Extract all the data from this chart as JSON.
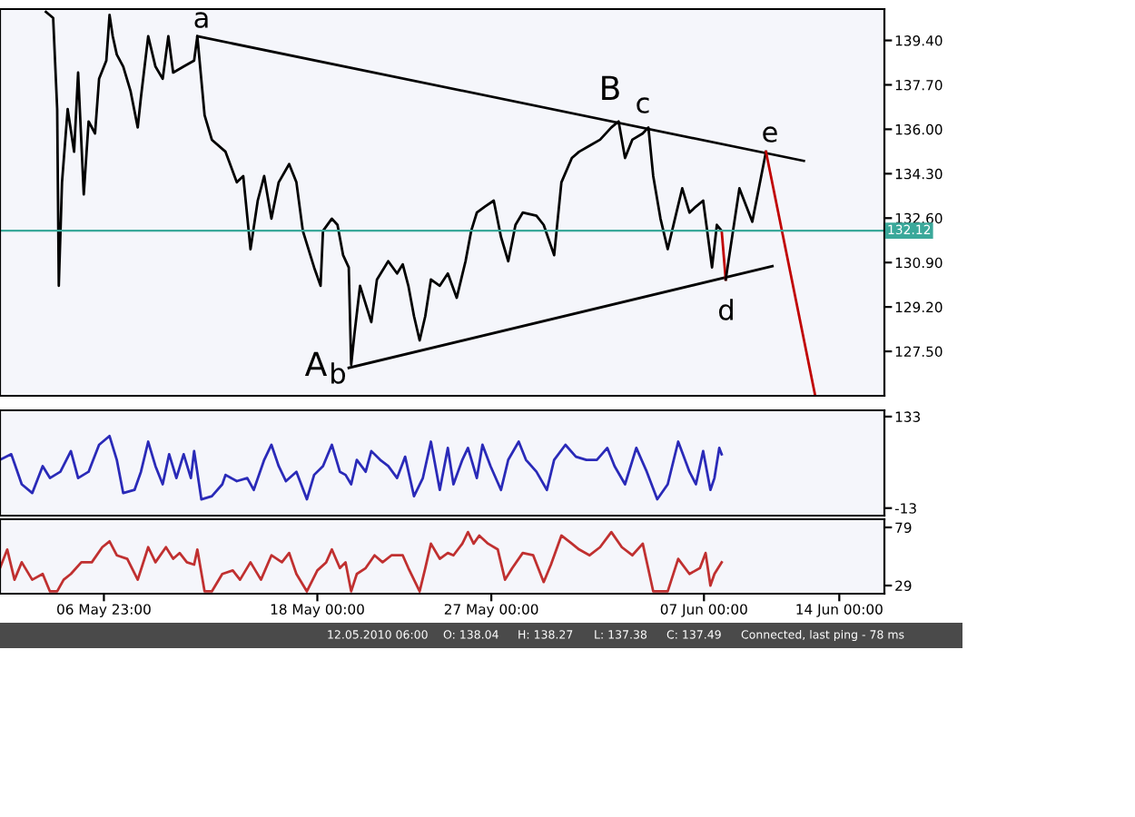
{
  "chart_data": [
    {
      "type": "line",
      "xlim": [
        "2010-05-01T14:00",
        "2010-06-16T08:00"
      ],
      "ylim": [
        125.8,
        140.6
      ],
      "tick_labels": "y",
      "yticks": [
        {
          "value": 127.5,
          "label": "127.50"
        },
        {
          "value": 129.2,
          "label": "129.20"
        },
        {
          "value": 130.9,
          "label": "130.90"
        },
        {
          "value": 132.6,
          "label": "132.60"
        },
        {
          "value": 134.3,
          "label": "134.30"
        },
        {
          "value": 136.0,
          "label": "136.00"
        },
        {
          "value": 137.7,
          "label": "137.70"
        },
        {
          "value": 139.4,
          "label": "139.40"
        }
      ],
      "series": [
        {
          "color": "#000000",
          "x": [
            "2010-05-03T23:00",
            "2010-05-04T08:00",
            "2010-05-04T13:00",
            "2010-05-04T15:00",
            "2010-05-04T19:00",
            "2010-05-05T02:00",
            "2010-05-05T10:00",
            "2010-05-05T15:00",
            "2010-05-05T22:00",
            "2010-05-06T04:00",
            "2010-05-06T12:00",
            "2010-05-06T17:00",
            "2010-05-07T02:00",
            "2010-05-07T06:00",
            "2010-05-07T10:00",
            "2010-05-07T15:00",
            "2010-05-07T23:00",
            "2010-05-08T08:00",
            "2010-05-08T17:00",
            "2010-05-08T21:00",
            "2010-05-09T06:00",
            "2010-05-09T15:00",
            "2010-05-10T00:00",
            "2010-05-10T07:00",
            "2010-05-10T13:00",
            "2010-05-11T02:00",
            "2010-05-11T15:00",
            "2010-05-11T19:00",
            "2010-05-12T04:00",
            "2010-05-12T13:00",
            "2010-05-13T06:00",
            "2010-05-13T20:00",
            "2010-05-14T04:00",
            "2010-05-14T13:00",
            "2010-05-14T22:00",
            "2010-05-15T06:00",
            "2010-05-15T15:00",
            "2010-05-16T00:00",
            "2010-05-16T13:00",
            "2010-05-16T22:00",
            "2010-05-17T06:00",
            "2010-05-17T20:00",
            "2010-05-18T04:00",
            "2010-05-18T07:00",
            "2010-05-18T18:00",
            "2010-05-19T01:00",
            "2010-05-19T08:00",
            "2010-05-19T15:00",
            "2010-05-19T18:00",
            "2010-05-19T22:00",
            "2010-05-20T05:00",
            "2010-05-20T19:00",
            "2010-05-21T02:00",
            "2010-05-21T16:00",
            "2010-05-22T03:00",
            "2010-05-22T10:00",
            "2010-05-22T17:00",
            "2010-05-23T00:00",
            "2010-05-23T07:00",
            "2010-05-23T14:00",
            "2010-05-23T21:00",
            "2010-05-24T08:00",
            "2010-05-24T18:00",
            "2010-05-25T05:00",
            "2010-05-25T16:00",
            "2010-05-25T23:00",
            "2010-05-26T06:00",
            "2010-05-26T16:00",
            "2010-05-27T03:00",
            "2010-05-27T12:00",
            "2010-05-27T21:00",
            "2010-05-28T06:00",
            "2010-05-28T15:00",
            "2010-05-29T08:00",
            "2010-05-29T17:00",
            "2010-05-30T06:00",
            "2010-05-30T15:00",
            "2010-05-31T04:00",
            "2010-05-31T13:00",
            "2010-06-01T02:00",
            "2010-06-01T15:00",
            "2010-06-02T05:00",
            "2010-06-02T14:00",
            "2010-06-02T22:00",
            "2010-06-03T07:00",
            "2010-06-03T20:00",
            "2010-06-04T03:00",
            "2010-06-04T09:00",
            "2010-06-04T18:00",
            "2010-06-05T03:00",
            "2010-06-05T12:00",
            "2010-06-05T21:00",
            "2010-06-06T06:00",
            "2010-06-06T14:00",
            "2010-06-06T23:00",
            "2010-06-07T05:00",
            "2010-06-07T10:00",
            "2010-06-07T16:00",
            "2010-06-07T22:00"
          ],
          "values": [
            140.49,
            140.26,
            136.77,
            130.01,
            133.97,
            136.77,
            135.14,
            138.17,
            133.51,
            136.3,
            135.84,
            137.93,
            138.63,
            140.38,
            139.56,
            138.86,
            138.4,
            137.47,
            136.07,
            137.23,
            139.56,
            138.4,
            137.93,
            139.56,
            138.17,
            138.4,
            138.63,
            139.56,
            136.54,
            135.6,
            135.14,
            133.97,
            134.21,
            131.41,
            133.27,
            134.21,
            132.58,
            133.97,
            134.67,
            133.97,
            132.11,
            130.71,
            130.01,
            132.11,
            132.58,
            132.34,
            131.18,
            130.71,
            126.99,
            128.15,
            130.01,
            128.62,
            130.25,
            130.95,
            130.48,
            130.83,
            130.01,
            128.85,
            127.92,
            128.85,
            130.25,
            130.01,
            130.48,
            129.55,
            130.95,
            132.11,
            132.81,
            133.04,
            133.27,
            131.88,
            130.95,
            132.34,
            132.81,
            132.69,
            132.34,
            131.18,
            133.97,
            134.9,
            135.14,
            135.37,
            135.6,
            136.07,
            136.3,
            134.9,
            135.6,
            135.84,
            136.07,
            134.21,
            132.58,
            131.41,
            132.58,
            133.74,
            132.81,
            133.04,
            133.27,
            131.88,
            130.71,
            132.34,
            132.11
          ]
        },
        {
          "color": "#000000",
          "x": [
            "2010-05-11T19:00",
            "2010-06-12T04:00"
          ],
          "values": [
            139.56,
            134.79
          ]
        },
        {
          "color": "#000000",
          "x": [
            "2010-05-19T15:00",
            "2010-06-10T13:00"
          ],
          "values": [
            126.87,
            130.76
          ]
        },
        {
          "color": "#c00000",
          "x": [
            "2010-06-07T22:00",
            "2010-06-08T03:00"
          ],
          "values": [
            132.11,
            130.25
          ]
        },
        {
          "color": "#000000",
          "x": [
            "2010-06-08T03:00",
            "2010-06-08T20:00",
            "2010-06-09T12:00",
            "2010-06-10T05:00"
          ],
          "values": [
            130.25,
            133.74,
            132.46,
            135.14
          ]
        },
        {
          "color": "#c00000",
          "x": [
            "2010-06-10T05:00",
            "2010-06-12T18:00"
          ],
          "values": [
            135.14,
            125.82
          ]
        }
      ],
      "ref_lines": [
        {
          "axis": "y",
          "value": 132.12,
          "label": "132.12",
          "color": "#3aa89a"
        }
      ],
      "annotations": [
        "a",
        "B",
        "c",
        "e",
        "d",
        "A",
        "b"
      ]
    },
    {
      "type": "line",
      "xlim": [
        "2010-05-01T14:00",
        "2010-06-16T08:00"
      ],
      "ylim": [
        -25,
        143
      ],
      "tick_labels": "y",
      "yticks": [
        {
          "value": -13,
          "label": "-13"
        },
        133
      ],
      "series": [
        {
          "color": "#2a2ab8",
          "x": [
            "2010-05-01T14:00",
            "2010-05-02T04:00",
            "2010-05-02T17:00",
            "2010-05-03T06:00",
            "2010-05-03T19:00",
            "2010-05-04T04:00",
            "2010-05-04T17:00",
            "2010-05-05T06:00",
            "2010-05-05T15:00",
            "2010-05-06T04:00",
            "2010-05-06T17:00",
            "2010-05-07T06:00",
            "2010-05-07T15:00",
            "2010-05-07T23:00",
            "2010-05-08T13:00",
            "2010-05-08T21:00",
            "2010-05-09T06:00",
            "2010-05-09T15:00",
            "2010-05-10T00:00",
            "2010-05-10T08:00",
            "2010-05-10T17:00",
            "2010-05-11T02:00",
            "2010-05-11T11:00",
            "2010-05-11T15:00",
            "2010-05-12T00:00",
            "2010-05-12T13:00",
            "2010-05-13T02:00",
            "2010-05-13T06:00",
            "2010-05-13T20:00",
            "2010-05-14T09:00",
            "2010-05-14T17:00",
            "2010-05-15T06:00",
            "2010-05-15T15:00",
            "2010-05-16T00:00",
            "2010-05-16T09:00",
            "2010-05-16T22:00",
            "2010-05-17T11:00",
            "2010-05-17T20:00",
            "2010-05-18T07:00",
            "2010-05-18T18:00",
            "2010-05-19T04:00",
            "2010-05-19T11:00",
            "2010-05-19T18:00",
            "2010-05-20T01:00",
            "2010-05-20T12:00",
            "2010-05-20T19:00",
            "2010-05-21T06:00",
            "2010-05-21T16:00",
            "2010-05-22T03:00",
            "2010-05-22T13:00",
            "2010-05-23T00:00",
            "2010-05-23T11:00",
            "2010-05-23T21:00",
            "2010-05-24T08:00",
            "2010-05-24T18:00",
            "2010-05-25T01:00",
            "2010-05-25T12:00",
            "2010-05-25T19:00",
            "2010-05-26T06:00",
            "2010-05-26T13:00",
            "2010-05-26T23:00",
            "2010-05-27T12:00",
            "2010-05-27T21:00",
            "2010-05-28T10:00",
            "2010-05-28T19:00",
            "2010-05-29T08:00",
            "2010-05-29T21:00",
            "2010-05-30T06:00",
            "2010-05-30T20:00",
            "2010-05-31T09:00",
            "2010-05-31T22:00",
            "2010-06-01T11:00",
            "2010-06-02T00:00",
            "2010-06-02T09:00",
            "2010-06-02T22:00",
            "2010-06-03T12:00",
            "2010-06-04T01:00",
            "2010-06-04T14:00",
            "2010-06-05T03:00",
            "2010-06-05T16:00",
            "2010-06-06T06:00",
            "2010-06-06T14:00",
            "2010-06-06T23:00",
            "2010-06-07T08:00",
            "2010-06-07T13:00",
            "2010-06-07T19:00",
            "2010-06-07T22:00"
          ],
          "values": [
            64,
            73,
            25,
            11,
            54,
            35,
            45,
            78,
            35,
            45,
            88,
            102,
            64,
            11,
            16,
            45,
            93,
            54,
            25,
            73,
            35,
            73,
            35,
            78,
            1,
            6,
            25,
            40,
            30,
            35,
            16,
            64,
            88,
            54,
            30,
            45,
            1,
            40,
            54,
            88,
            45,
            40,
            25,
            64,
            45,
            78,
            64,
            54,
            35,
            69,
            6,
            35,
            93,
            16,
            83,
            25,
            64,
            83,
            35,
            88,
            54,
            16,
            64,
            93,
            64,
            45,
            16,
            64,
            88,
            69,
            64,
            64,
            83,
            54,
            25,
            83,
            45,
            1,
            25,
            93,
            45,
            25,
            78,
            16,
            35,
            83,
            73
          ]
        }
      ]
    },
    {
      "type": "line",
      "xlim": [
        "2010-05-01T14:00",
        "2010-06-16T08:00"
      ],
      "ylim": [
        22,
        86
      ],
      "xticks": [
        {
          "value": "2010-05-06T23:00",
          "label": "06 May 23:00"
        },
        {
          "value": "2010-05-18T00:00",
          "label": "18 May 00:00"
        },
        {
          "value": "2010-05-27T00:00",
          "label": "27 May 00:00"
        },
        {
          "value": "2010-06-07T00:00",
          "label": "07 Jun 00:00"
        },
        {
          "value": "2010-06-14T00:00",
          "label": "14 Jun 00:00"
        }
      ],
      "yticks": [
        29,
        79
      ],
      "series": [
        {
          "color": "#c03030",
          "x": [
            "2010-05-01T14:00",
            "2010-05-01T23:00",
            "2010-05-02T08:00",
            "2010-05-02T17:00",
            "2010-05-03T06:00",
            "2010-05-03T19:00",
            "2010-05-04T04:00",
            "2010-05-04T13:00",
            "2010-05-04T21:00",
            "2010-05-05T06:00",
            "2010-05-05T19:00",
            "2010-05-06T08:00",
            "2010-05-06T21:00",
            "2010-05-07T06:00",
            "2010-05-07T15:00",
            "2010-05-08T04:00",
            "2010-05-08T17:00",
            "2010-05-09T06:00",
            "2010-05-09T15:00",
            "2010-05-10T04:00",
            "2010-05-10T13:00",
            "2010-05-10T21:00",
            "2010-05-11T06:00",
            "2010-05-11T15:00",
            "2010-05-11T19:00",
            "2010-05-12T04:00",
            "2010-05-12T13:00",
            "2010-05-13T02:00",
            "2010-05-13T15:00",
            "2010-05-14T00:00",
            "2010-05-14T13:00",
            "2010-05-15T02:00",
            "2010-05-15T15:00",
            "2010-05-16T04:00",
            "2010-05-16T13:00",
            "2010-05-16T22:00",
            "2010-05-17T11:00",
            "2010-05-18T00:00",
            "2010-05-18T11:00",
            "2010-05-18T18:00",
            "2010-05-19T04:00",
            "2010-05-19T11:00",
            "2010-05-19T18:00",
            "2010-05-20T01:00",
            "2010-05-20T12:00",
            "2010-05-20T23:00",
            "2010-05-21T09:00",
            "2010-05-21T20:00",
            "2010-05-22T10:00",
            "2010-05-22T17:00",
            "2010-05-23T00:00",
            "2010-05-23T07:00",
            "2010-05-23T14:00",
            "2010-05-23T21:00",
            "2010-05-24T08:00",
            "2010-05-24T18:00",
            "2010-05-25T01:00",
            "2010-05-25T12:00",
            "2010-05-25T19:00",
            "2010-05-26T02:00",
            "2010-05-26T09:00",
            "2010-05-26T20:00",
            "2010-05-27T08:00",
            "2010-05-27T17:00",
            "2010-05-28T02:00",
            "2010-05-28T15:00",
            "2010-05-29T04:00",
            "2010-05-29T17:00",
            "2010-05-30T02:00",
            "2010-05-30T15:00",
            "2010-05-31T04:00",
            "2010-05-31T13:00",
            "2010-06-01T02:00",
            "2010-06-01T15:00",
            "2010-06-02T05:00",
            "2010-06-02T18:00",
            "2010-06-03T07:00",
            "2010-06-03T20:00",
            "2010-06-04T09:00",
            "2010-06-05T03:00",
            "2010-06-05T16:00",
            "2010-06-06T06:00",
            "2010-06-06T19:00",
            "2010-06-07T02:00",
            "2010-06-07T08:00",
            "2010-06-07T13:00",
            "2010-06-07T22:00"
          ],
          "values": [
            44,
            60,
            34,
            49,
            34,
            39,
            24,
            24,
            34,
            39,
            49,
            49,
            62,
            67,
            55,
            52,
            34,
            62,
            49,
            62,
            52,
            57,
            49,
            47,
            60,
            24,
            24,
            39,
            42,
            34,
            49,
            34,
            55,
            49,
            57,
            39,
            24,
            42,
            49,
            60,
            44,
            49,
            24,
            39,
            44,
            55,
            49,
            55,
            55,
            44,
            34,
            24,
            44,
            65,
            52,
            57,
            55,
            65,
            75,
            65,
            72,
            65,
            60,
            34,
            44,
            57,
            55,
            32,
            47,
            72,
            65,
            60,
            55,
            62,
            75,
            62,
            55,
            65,
            24,
            24,
            52,
            39,
            44,
            57,
            29,
            39,
            49
          ]
        }
      ],
      "annotations": [
        "12.05.2010 06:00",
        "O: 138.04",
        "H: 138.27",
        "L: 137.38",
        "C: 137.49",
        "Connected, last ping - 78 ms"
      ]
    }
  ]
}
